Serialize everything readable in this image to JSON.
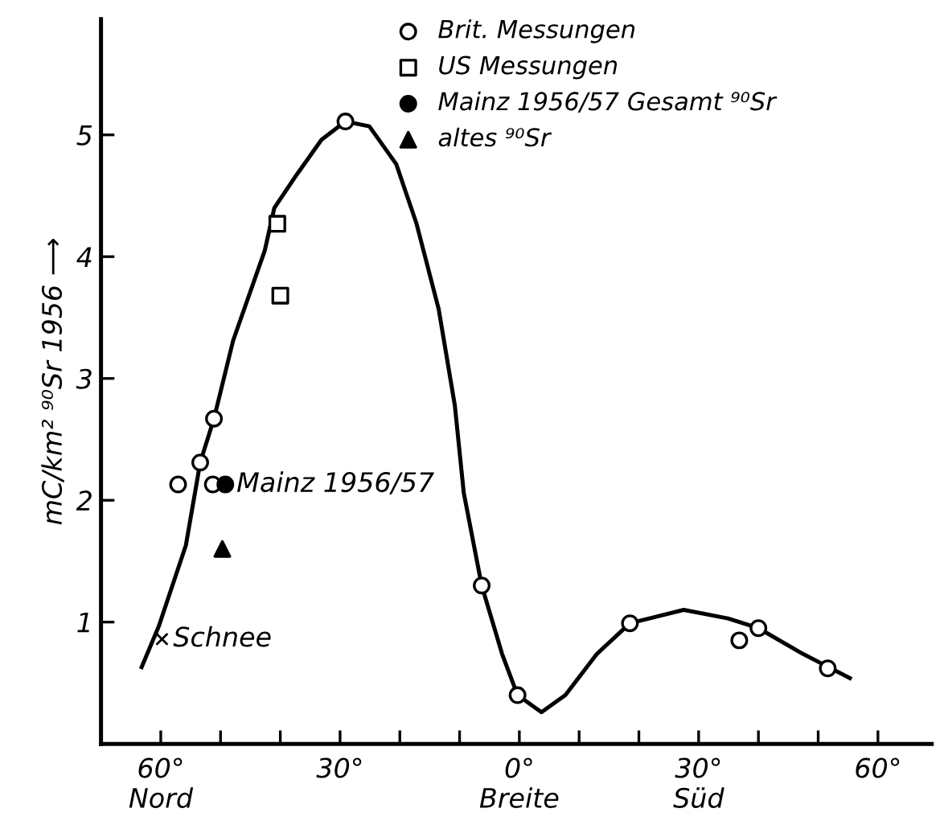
{
  "chart_data": {
    "type": "scatter",
    "ylabel": "mC/km² ⁹⁰Sr 1956 ⟶",
    "xlim": [
      -70,
      69
    ],
    "ylim": [
      0,
      5.95
    ],
    "xticks": [
      {
        "value": -60,
        "label": "60°\nNord"
      },
      {
        "value": -50,
        "label": null
      },
      {
        "value": -40,
        "label": null
      },
      {
        "value": -30,
        "label": "30°"
      },
      {
        "value": -20,
        "label": null
      },
      {
        "value": -10,
        "label": null
      },
      {
        "value": 0,
        "label": "0°\nBreite"
      },
      {
        "value": 10,
        "label": null
      },
      {
        "value": 20,
        "label": null
      },
      {
        "value": 30,
        "label": "30°\nSüd"
      },
      {
        "value": 40,
        "label": null
      },
      {
        "value": 50,
        "label": null
      },
      {
        "value": 60,
        "label": "60°"
      }
    ],
    "yticks": [
      1,
      2,
      3,
      4,
      5
    ],
    "legend": "top right",
    "grid": false,
    "series": [
      {
        "type": "line",
        "color": "#000000",
        "marker": "none",
        "line_style": "solid",
        "x": [
          -63.2,
          -60.3,
          -55.8,
          -53.4,
          -51.1,
          -47.9,
          -42.6,
          -41,
          -37.3,
          -33.1,
          -29.1,
          -25.1,
          -20.6,
          -17.2,
          -13.5,
          -10.8,
          -9.3,
          -6.3,
          -2.9,
          -0.3,
          3.7,
          7.7,
          13,
          18.5,
          27.5,
          34.9,
          40,
          47.4,
          55.3
        ],
        "values": [
          0.63,
          0.97,
          1.63,
          2.31,
          2.67,
          3.31,
          4.05,
          4.4,
          4.67,
          4.96,
          5.11,
          5.07,
          4.76,
          4.27,
          3.57,
          2.78,
          2.06,
          1.3,
          0.74,
          0.4,
          0.26,
          0.4,
          0.74,
          0.99,
          1.1,
          1.03,
          0.95,
          0.74,
          0.54
        ]
      },
      {
        "name": "Brit. Messungen",
        "color": "#ffffff",
        "marker": "circle",
        "x": [
          -57.1,
          -53.4,
          -51.1,
          -51.3,
          -29.1,
          -6.3,
          -0.3,
          18.5,
          36.8,
          40,
          51.6
        ],
        "values": [
          2.13,
          2.31,
          2.67,
          2.13,
          5.11,
          1.3,
          0.4,
          0.99,
          0.85,
          0.95,
          0.62
        ]
      },
      {
        "name": "US Messungen",
        "color": "#ffffff",
        "marker": "square",
        "x": [
          -40.5,
          -40
        ],
        "values": [
          4.27,
          3.68
        ]
      },
      {
        "name": "Mainz 1956/57 Gesamt ⁹⁰Sr",
        "color": "#000000",
        "marker": "circle",
        "x": [
          -49.2
        ],
        "values": [
          2.13
        ]
      },
      {
        "name": "altes ⁹⁰Sr",
        "color": "#000000",
        "marker": "triangle",
        "x": [
          -49.7
        ],
        "values": [
          1.6
        ]
      },
      {
        "color": "#000000",
        "marker": "cross",
        "x": [
          -59.8
        ],
        "values": [
          0.86
        ]
      }
    ],
    "annotations": [
      {
        "text": "Mainz 1956/57",
        "x": -49.2,
        "y": 2.13
      },
      {
        "text": "Schnee",
        "x": -59.8,
        "y": 0.86
      }
    ]
  }
}
